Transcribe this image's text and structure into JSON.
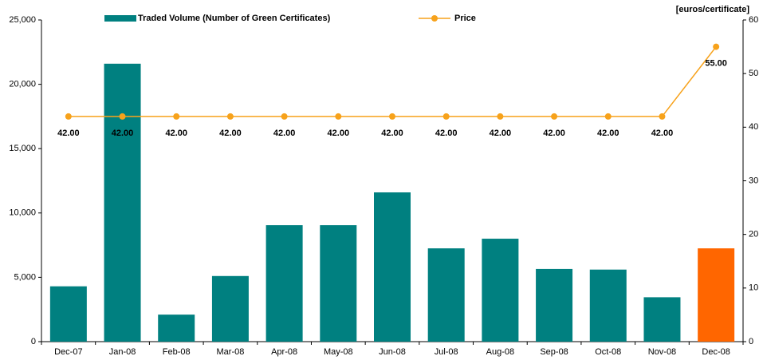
{
  "chart_data": {
    "type": "bar",
    "y2_label": "[euros/certificate]",
    "categories": [
      "Dec-07",
      "Jan-08",
      "Feb-08",
      "Mar-08",
      "Apr-08",
      "May-08",
      "Jun-08",
      "Jul-08",
      "Aug-08",
      "Sep-08",
      "Oct-08",
      "Nov-08",
      "Dec-08"
    ],
    "series": [
      {
        "name": "Traded Volume (Number of Green Certificates)",
        "type": "bar",
        "axis": "y",
        "color": "#008080",
        "colors": [
          "#008080",
          "#008080",
          "#008080",
          "#008080",
          "#008080",
          "#008080",
          "#008080",
          "#008080",
          "#008080",
          "#008080",
          "#008080",
          "#008080",
          "#ff6600"
        ],
        "values": [
          4300,
          21600,
          2100,
          5100,
          9050,
          9050,
          11600,
          7250,
          8000,
          5650,
          5600,
          3450,
          7250
        ]
      },
      {
        "name": "Price",
        "type": "line",
        "axis": "y2",
        "color": "#f7a21b",
        "values": [
          42,
          42,
          42,
          42,
          42,
          42,
          42,
          42,
          42,
          42,
          42,
          42,
          55
        ],
        "value_labels": [
          "42.00",
          "42.00",
          "42.00",
          "42.00",
          "42.00",
          "42.00",
          "42.00",
          "42.00",
          "42.00",
          "42.00",
          "42.00",
          "42.00",
          "55.00"
        ]
      }
    ],
    "ylim": [
      0,
      25000
    ],
    "yticks": [
      {
        "value": 0,
        "label": "0"
      },
      {
        "value": 5000,
        "label": "5,000"
      },
      {
        "value": 10000,
        "label": "10,000"
      },
      {
        "value": 15000,
        "label": "15,000"
      },
      {
        "value": 20000,
        "label": "20,000"
      },
      {
        "value": 25000,
        "label": "25,000"
      }
    ],
    "y2lim": [
      0,
      60
    ],
    "y2ticks": [
      0,
      10,
      20,
      30,
      40,
      50,
      60
    ],
    "legend": "top"
  }
}
